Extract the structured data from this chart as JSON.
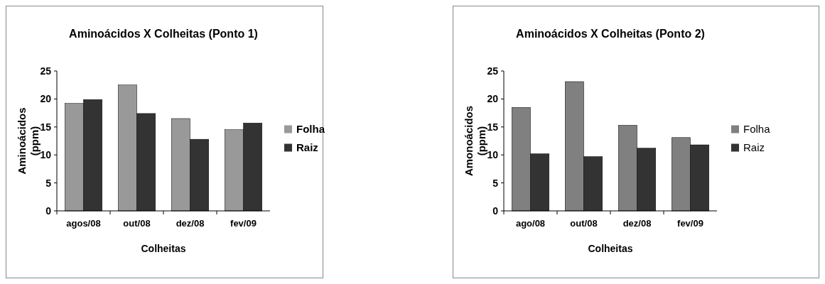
{
  "chart_data": [
    {
      "type": "bar",
      "title": "Aminoácidos X Colheitas (Ponto 1)",
      "xlabel": "Colheitas",
      "ylabel": "Aminoácidos (ppm)",
      "categories": [
        "agos/08",
        "out/08",
        "dez/08",
        "fev/09"
      ],
      "series": [
        {
          "name": "Folha",
          "color": "#999999",
          "values": [
            19.2,
            22.5,
            16.5,
            14.5
          ]
        },
        {
          "name": "Raiz",
          "color": "#333333",
          "values": [
            19.9,
            17.4,
            12.8,
            15.7
          ]
        }
      ],
      "ylim": [
        0,
        25
      ],
      "yticks": [
        0,
        5,
        10,
        15,
        20,
        25
      ],
      "grid": false,
      "legend": "right"
    },
    {
      "type": "bar",
      "title": "Aminoácidos X Colheitas (Ponto 2)",
      "xlabel": "Colheitas",
      "ylabel": "Amonoácidos (ppm)",
      "categories": [
        "ago/08",
        "out/08",
        "dez/08",
        "fev/09"
      ],
      "series": [
        {
          "name": "Folha",
          "color": "#808080",
          "values": [
            18.5,
            23.1,
            15.3,
            13.1
          ]
        },
        {
          "name": "Raiz",
          "color": "#333333",
          "values": [
            10.2,
            9.7,
            11.2,
            11.8
          ]
        }
      ],
      "ylim": [
        0,
        25
      ],
      "yticks": [
        0,
        5,
        10,
        15,
        20,
        25
      ],
      "grid": false,
      "legend": "right"
    }
  ]
}
